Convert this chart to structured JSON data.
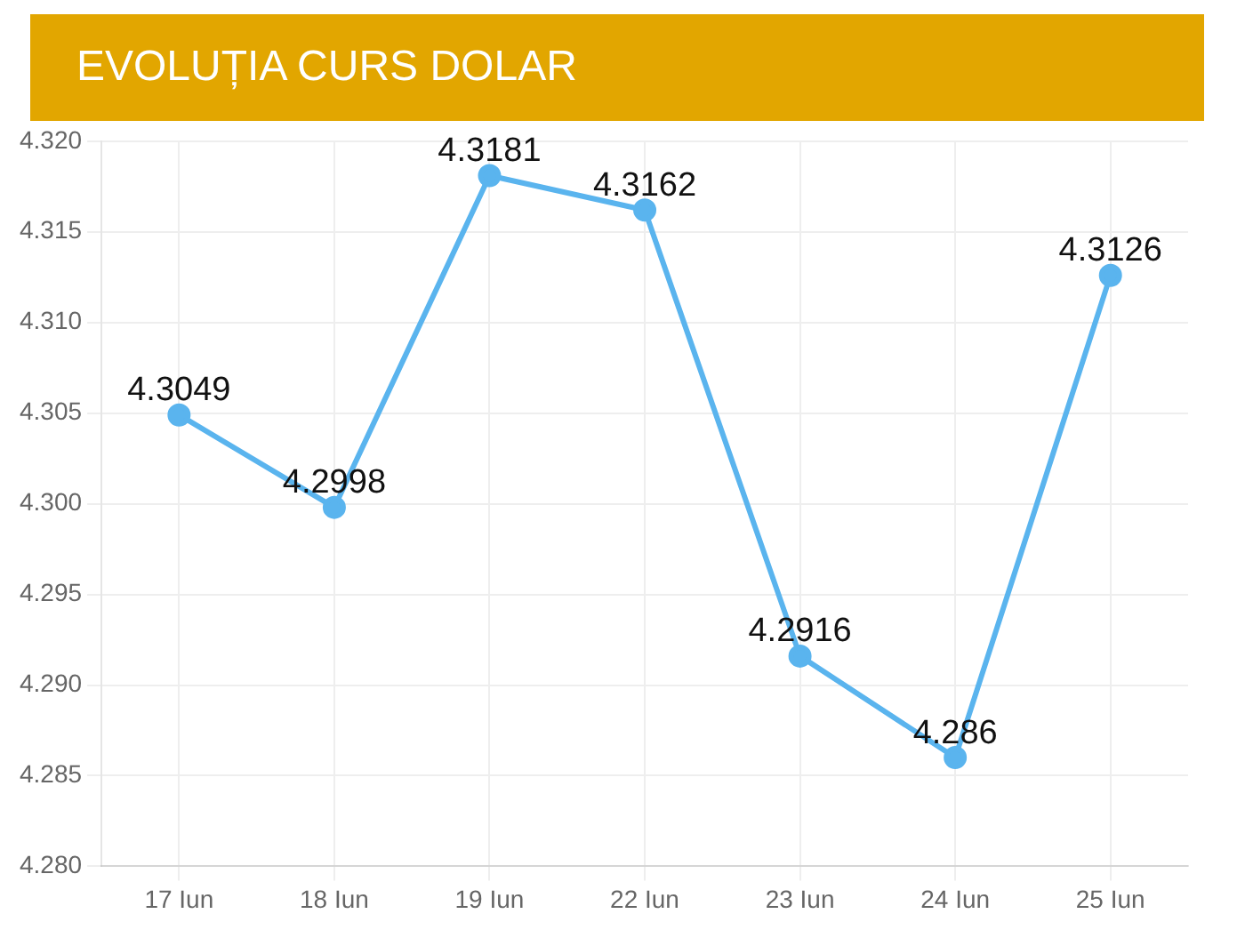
{
  "chart_data": {
    "type": "line",
    "title": "EVOLUȚIA CURS DOLAR",
    "categories": [
      "17 Iun",
      "18 Iun",
      "19 Iun",
      "22 Iun",
      "23 Iun",
      "24 Iun",
      "25 Iun"
    ],
    "series": [
      {
        "color": "#5ab4ee",
        "values": [
          4.3049,
          4.2998,
          4.3181,
          4.3162,
          4.2916,
          4.286,
          4.3126
        ]
      }
    ],
    "ylim": [
      4.28,
      4.32
    ],
    "yticks": [
      {
        "value": 4.28,
        "label": "4.280"
      },
      {
        "value": 4.285,
        "label": "4.285"
      },
      {
        "value": 4.29,
        "label": "4.290"
      },
      {
        "value": 4.295,
        "label": "4.295"
      },
      {
        "value": 4.3,
        "label": "4.300"
      },
      {
        "value": 4.305,
        "label": "4.305"
      },
      {
        "value": 4.31,
        "label": "4.310"
      },
      {
        "value": 4.315,
        "label": "4.315"
      },
      {
        "value": 4.32,
        "label": "4.320"
      }
    ],
    "grid": true,
    "legend": false,
    "marker": "circle",
    "line_style": "solid",
    "data_labels": true
  }
}
